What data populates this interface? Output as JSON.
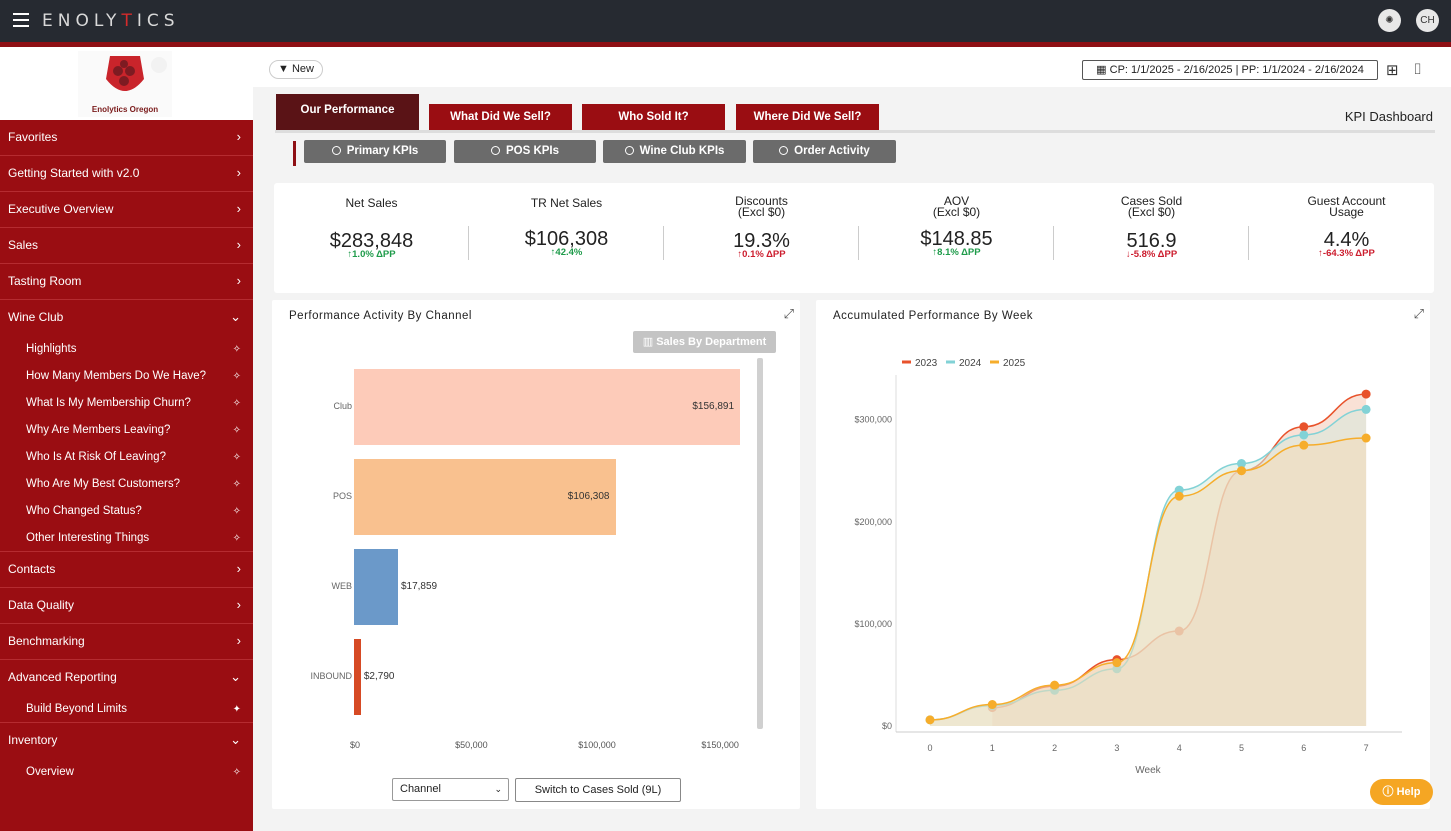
{
  "app": {
    "brand_pre": "ENOLY",
    "brand_t": "T",
    "brand_post": "ICS",
    "user_initials": "CH",
    "logo_text": "Enolytics Oregon"
  },
  "toolbar": {
    "new_label": "New",
    "date_range": "CP: 1/1/2025 - 2/16/2025 | PP: 1/1/2024 - 2/16/2024"
  },
  "sidebar": {
    "items": [
      {
        "label": "Favorites",
        "chev": "›"
      },
      {
        "label": "Getting Started with v2.0",
        "chev": "›"
      },
      {
        "label": "Executive Overview",
        "chev": "›"
      },
      {
        "label": "Sales",
        "chev": "›"
      },
      {
        "label": "Tasting Room",
        "chev": "›"
      },
      {
        "label": "Wine Club",
        "chev": "⌄"
      },
      {
        "label": "Contacts",
        "chev": "›"
      },
      {
        "label": "Data Quality",
        "chev": "›"
      },
      {
        "label": "Benchmarking",
        "chev": "›"
      },
      {
        "label": "Advanced Reporting",
        "chev": "⌄"
      },
      {
        "label": "Inventory",
        "chev": "⌄"
      }
    ],
    "wine_club_subs": [
      "Highlights",
      "How Many Members Do We Have?",
      "What Is My Membership Churn?",
      "Why Are Members Leaving?",
      "Who Is At Risk Of Leaving?",
      "Who Are My Best Customers?",
      "Who Changed Status?",
      "Other Interesting Things"
    ],
    "advanced_subs": [
      "Build Beyond Limits"
    ],
    "inventory_subs": [
      "Overview"
    ]
  },
  "tabs": [
    "Our Performance",
    "What Did We Sell?",
    "Who Sold It?",
    "Where Did We Sell?"
  ],
  "page_title": "KPI Dashboard",
  "subtabs": [
    "Primary KPIs",
    "POS KPIs",
    "Wine Club KPIs",
    "Order Activity"
  ],
  "kpis": [
    {
      "label1": "Net Sales",
      "label2": "",
      "value": "$283,848",
      "change": "↑1.0% ΔPP",
      "dir": "up"
    },
    {
      "label1": "TR Net Sales",
      "label2": "",
      "value": "$106,308",
      "change": "↑42.4%",
      "dir": "up"
    },
    {
      "label1": "Discounts",
      "label2": "(Excl $0)",
      "value": "19.3%",
      "change": "↑0.1% ΔPP",
      "dir": "down"
    },
    {
      "label1": "AOV",
      "label2": "(Excl $0)",
      "value": "$148.85",
      "change": "↑8.1% ΔPP",
      "dir": "up"
    },
    {
      "label1": "Cases Sold",
      "label2": "(Excl $0)",
      "value": "516.9",
      "change": "↓-5.8% ΔPP",
      "dir": "down"
    },
    {
      "label1": "Guest Account",
      "label2": "Usage",
      "value": "4.4%",
      "change": "↑-64.3% ΔPP",
      "dir": "down"
    }
  ],
  "channel_card": {
    "title": "Performance Activity By Channel",
    "dept_button": "Sales By Department",
    "select_value": "Channel",
    "switch_label": "Switch to Cases Sold (9L)"
  },
  "week_card": {
    "title": "Accumulated Performance By Week"
  },
  "help_label": "Help",
  "chart_data": [
    {
      "type": "bar",
      "orientation": "horizontal",
      "title": "Performance Activity By Channel",
      "categories": [
        "Club",
        "POS",
        "WEB",
        "INBOUND"
      ],
      "values": [
        156891,
        106308,
        17859,
        2790
      ],
      "value_labels": [
        "$156,891",
        "$106,308",
        "$17,859",
        "$2,790"
      ],
      "colors": [
        "#fdcbb9",
        "#f9c18f",
        "#6b99c9",
        "#d64a24"
      ],
      "xlim": [
        0,
        160000
      ],
      "xticks": [
        0,
        50000,
        100000,
        150000
      ],
      "xtick_labels": [
        "$0",
        "$50,000",
        "$100,000",
        "$150,000"
      ]
    },
    {
      "type": "area",
      "title": "Accumulated Performance By Week",
      "xlabel": "Week",
      "x": [
        0,
        1,
        2,
        3,
        4,
        5,
        6,
        7
      ],
      "ylim": [
        0,
        330000
      ],
      "yticks": [
        0,
        100000,
        200000,
        300000
      ],
      "ytick_labels": [
        "$0",
        "$100,000",
        "$200,000",
        "$300,000"
      ],
      "legend_position": "top-left",
      "series": [
        {
          "name": "2023",
          "color": "#e8522b",
          "fill": "#f4c8b4",
          "x": [
            1,
            2,
            3,
            4,
            5,
            6,
            7
          ],
          "values": [
            18000,
            39000,
            65000,
            93000,
            250000,
            293000,
            325000
          ]
        },
        {
          "name": "2024",
          "color": "#82d2d6",
          "fill": "#d7eadd",
          "x": [
            0,
            1,
            2,
            3,
            4,
            5,
            6,
            7
          ],
          "values": [
            6000,
            20000,
            35000,
            56000,
            231000,
            257000,
            285000,
            310000
          ]
        },
        {
          "name": "2025",
          "color": "#f6ad2b",
          "fill": "#f2ddb9",
          "x": [
            0,
            1,
            2,
            3,
            4,
            5,
            6,
            7
          ],
          "values": [
            6000,
            21000,
            40000,
            62000,
            225000,
            250000,
            275000,
            282000
          ]
        }
      ]
    }
  ]
}
